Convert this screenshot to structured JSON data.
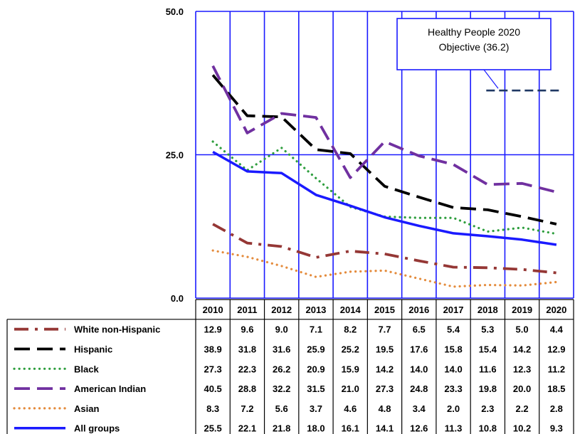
{
  "chart_data": {
    "type": "line",
    "x": [
      "2010",
      "2011",
      "2012",
      "2013",
      "2014",
      "2015",
      "2016",
      "2017",
      "2018",
      "2019",
      "2020"
    ],
    "ylim": [
      0,
      50
    ],
    "yticks": [
      "0.0",
      "25.0",
      "50.0"
    ],
    "grid": true,
    "legend_placement": "bottom-table",
    "series": [
      {
        "name": "White non-Hispanic",
        "values": [
          12.9,
          9.6,
          9.0,
          7.1,
          8.2,
          7.7,
          6.5,
          5.4,
          5.3,
          5.0,
          4.4
        ],
        "labels": [
          "12.9",
          "9.6",
          "9.0",
          "7.1",
          "8.2",
          "7.7",
          "6.5",
          "5.4",
          "5.3",
          "5.0",
          "4.4"
        ],
        "color": "#953735",
        "style": "dash-dot"
      },
      {
        "name": "Hispanic",
        "values": [
          38.9,
          31.8,
          31.6,
          25.9,
          25.2,
          19.5,
          17.6,
          15.8,
          15.4,
          14.2,
          12.9
        ],
        "labels": [
          "38.9",
          "31.8",
          "31.6",
          "25.9",
          "25.2",
          "19.5",
          "17.6",
          "15.8",
          "15.4",
          "14.2",
          "12.9"
        ],
        "color": "#000000",
        "style": "long-dash"
      },
      {
        "name": "Black",
        "values": [
          27.3,
          22.3,
          26.2,
          20.9,
          15.9,
          14.2,
          14.0,
          14.0,
          11.6,
          12.3,
          11.2
        ],
        "labels": [
          "27.3",
          "22.3",
          "26.2",
          "20.9",
          "15.9",
          "14.2",
          "14.0",
          "14.0",
          "11.6",
          "12.3",
          "11.2"
        ],
        "color": "#2e9e3e",
        "style": "dotted"
      },
      {
        "name": "American Indian",
        "values": [
          40.5,
          28.8,
          32.2,
          31.5,
          21.0,
          27.3,
          24.8,
          23.3,
          19.8,
          20.0,
          18.5
        ],
        "labels": [
          "40.5",
          "28.8",
          "32.2",
          "31.5",
          "21.0",
          "27.3",
          "24.8",
          "23.3",
          "19.8",
          "20.0",
          "18.5"
        ],
        "color": "#7030a0",
        "style": "long-dash"
      },
      {
        "name": "Asian",
        "values": [
          8.3,
          7.2,
          5.6,
          3.7,
          4.6,
          4.8,
          3.4,
          2.0,
          2.3,
          2.2,
          2.8
        ],
        "labels": [
          "8.3",
          "7.2",
          "5.6",
          "3.7",
          "4.6",
          "4.8",
          "3.4",
          "2.0",
          "2.3",
          "2.2",
          "2.8"
        ],
        "color": "#e48b3c",
        "style": "dotted"
      },
      {
        "name": "All groups",
        "values": [
          25.5,
          22.1,
          21.8,
          18.0,
          16.1,
          14.1,
          12.6,
          11.3,
          10.8,
          10.2,
          9.3
        ],
        "labels": [
          "25.5",
          "22.1",
          "21.8",
          "18.0",
          "16.1",
          "14.1",
          "12.6",
          "11.3",
          "10.8",
          "10.2",
          "9.3"
        ],
        "color": "#1a1aff",
        "style": "solid"
      }
    ],
    "objective": {
      "value": 36.2,
      "x_start": "2018",
      "x_end": "2020",
      "color": "#1f3864",
      "label_lines": [
        "Healthy People 2020",
        "Objective (36.2)"
      ]
    }
  }
}
